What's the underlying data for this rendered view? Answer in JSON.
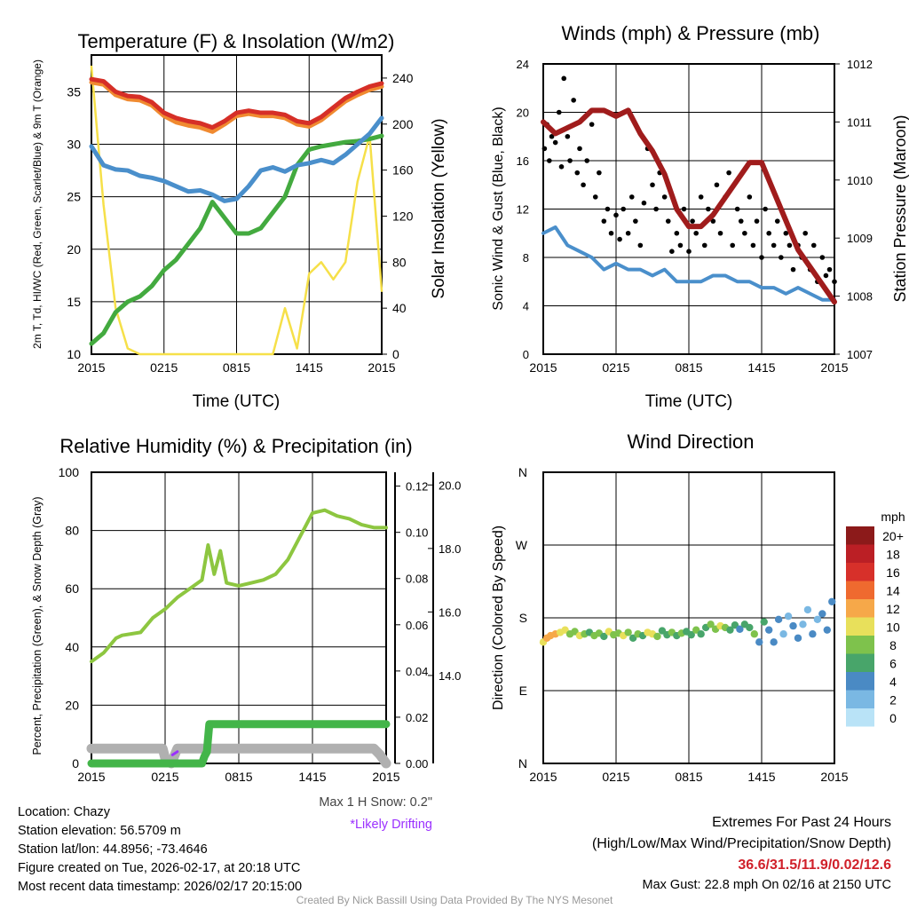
{
  "chart_data": [
    {
      "type": "line",
      "title": "Temperature (F) & Insolation (W/m2)",
      "xlabel": "Time (UTC)",
      "ylabel": "2m T, Td, HI/WC (Red, Green, Scarlet/Blue) & 9m T (Orange)",
      "y2label": "Solar Insolation (Yellow)",
      "xticks": [
        "2015",
        "0215",
        "0815",
        "1415",
        "2015"
      ],
      "ylim": [
        10,
        38.5
      ],
      "yticks": [
        10,
        15,
        20,
        25,
        30,
        35
      ],
      "y2lim": [
        0,
        260
      ],
      "y2ticks": [
        0,
        40,
        80,
        120,
        160,
        200,
        240
      ],
      "hours": [
        0,
        1,
        2,
        3,
        4,
        5,
        6,
        7,
        8,
        9,
        10,
        11,
        12,
        13,
        14,
        15,
        16,
        17,
        18,
        19,
        20,
        21,
        22,
        23,
        24
      ],
      "series": [
        {
          "name": "2m T",
          "color": "#d62f27",
          "axis": "left",
          "values": [
            36.2,
            36,
            35,
            34.6,
            34.5,
            34,
            33,
            32.5,
            32.2,
            32,
            31.6,
            32.2,
            33,
            33.2,
            33,
            33,
            32.8,
            32.2,
            32,
            32.6,
            33.5,
            34.4,
            35,
            35.5,
            35.8
          ]
        },
        {
          "name": "9m T",
          "color": "#f08a30",
          "axis": "left",
          "values": [
            35.9,
            35.7,
            34.7,
            34.3,
            34.2,
            33.7,
            32.7,
            32.1,
            31.8,
            31.6,
            31.2,
            31.9,
            32.7,
            32.9,
            32.7,
            32.7,
            32.5,
            31.9,
            31.7,
            32.3,
            33.2,
            34.1,
            34.7,
            35.2,
            35.5
          ]
        },
        {
          "name": "Wind Chill",
          "color": "#4a8fcb",
          "axis": "left",
          "values": [
            29.8,
            28,
            27.6,
            27.5,
            27,
            26.8,
            26.5,
            26,
            25.5,
            25.6,
            25.2,
            24.6,
            24.8,
            26,
            27.5,
            27.8,
            27.4,
            28,
            28.2,
            28.5,
            28.2,
            29,
            30,
            31,
            32.5
          ]
        },
        {
          "name": "Dewpoint",
          "color": "#43aa3f",
          "axis": "left",
          "values": [
            11,
            12,
            14,
            15,
            15.5,
            16.5,
            18,
            19,
            20.5,
            22,
            24.5,
            23,
            21.5,
            21.5,
            22,
            23.5,
            25,
            28,
            29.5,
            29.8,
            30,
            30.2,
            30.3,
            30.5,
            30.8
          ]
        },
        {
          "name": "Solar Insolation",
          "color": "#f6e049",
          "axis": "right",
          "values": [
            250,
            130,
            40,
            5,
            0,
            0,
            0,
            0,
            0,
            0,
            0,
            0,
            0,
            0,
            0,
            0,
            40,
            5,
            70,
            80,
            65,
            80,
            150,
            190,
            55
          ]
        }
      ]
    },
    {
      "type": "line",
      "title": "Winds (mph) & Pressure (mb)",
      "xlabel": "Time (UTC)",
      "ylabel": "Sonic Wind & Gust (Blue, Black)",
      "y2label": "Station Pressure (Maroon)",
      "xticks": [
        "2015",
        "0215",
        "0815",
        "1415",
        "2015"
      ],
      "ylim": [
        0,
        24
      ],
      "yticks": [
        0,
        4,
        8,
        12,
        16,
        20,
        24
      ],
      "y2lim": [
        1007,
        1012
      ],
      "y2ticks": [
        1007,
        1008,
        1009,
        1010,
        1011,
        1012
      ],
      "hours": [
        0,
        1,
        2,
        3,
        4,
        5,
        6,
        7,
        8,
        9,
        10,
        11,
        12,
        13,
        14,
        15,
        16,
        17,
        18,
        19,
        20,
        21,
        22,
        23,
        24
      ],
      "series": [
        {
          "name": "Sonic Wind",
          "color": "#4a8fcb",
          "axis": "left",
          "values": [
            10,
            10.5,
            9,
            8.5,
            8,
            7,
            7.5,
            7,
            7,
            6.5,
            7,
            6,
            6,
            6,
            6.5,
            6.5,
            6,
            6,
            5.5,
            5.5,
            5,
            5.5,
            5,
            4.5,
            4.5
          ]
        },
        {
          "name": "Station Pressure",
          "color": "#a01c1c",
          "axis": "right",
          "values": [
            1011,
            1010.8,
            1010.9,
            1011,
            1011.2,
            1011.2,
            1011.1,
            1011.2,
            1010.8,
            1010.5,
            1010.1,
            1009.5,
            1009.2,
            1009.2,
            1009.4,
            1009.7,
            1010,
            1010.3,
            1010.3,
            1009.8,
            1009.3,
            1008.8,
            1008.5,
            1008.2,
            1007.9
          ]
        }
      ],
      "gust_points": [
        [
          0.1,
          17
        ],
        [
          0.3,
          19
        ],
        [
          0.5,
          16
        ],
        [
          0.7,
          18
        ],
        [
          1,
          17.5
        ],
        [
          1.3,
          20
        ],
        [
          1.5,
          15.5
        ],
        [
          1.7,
          22.8
        ],
        [
          2,
          18
        ],
        [
          2.2,
          16
        ],
        [
          2.5,
          21
        ],
        [
          2.8,
          15
        ],
        [
          3,
          17
        ],
        [
          3.3,
          14
        ],
        [
          3.6,
          16
        ],
        [
          4,
          19
        ],
        [
          4.3,
          13
        ],
        [
          4.6,
          15
        ],
        [
          5,
          11
        ],
        [
          5.3,
          12
        ],
        [
          5.6,
          10
        ],
        [
          6,
          11.5
        ],
        [
          6.3,
          9.5
        ],
        [
          6.6,
          12
        ],
        [
          7,
          10
        ],
        [
          7.3,
          13
        ],
        [
          7.6,
          11
        ],
        [
          8,
          9
        ],
        [
          8.3,
          12.5
        ],
        [
          8.6,
          17
        ],
        [
          9,
          14
        ],
        [
          9.3,
          12
        ],
        [
          9.6,
          15
        ],
        [
          10,
          13
        ],
        [
          10.3,
          11
        ],
        [
          10.6,
          8.5
        ],
        [
          11,
          10
        ],
        [
          11.3,
          9
        ],
        [
          11.6,
          12
        ],
        [
          12,
          8.5
        ],
        [
          12.3,
          11
        ],
        [
          12.6,
          10
        ],
        [
          13,
          13
        ],
        [
          13.3,
          9
        ],
        [
          13.6,
          12
        ],
        [
          14,
          11
        ],
        [
          14.3,
          14
        ],
        [
          14.6,
          10
        ],
        [
          15,
          13
        ],
        [
          15.3,
          15
        ],
        [
          15.6,
          9
        ],
        [
          16,
          12
        ],
        [
          16.3,
          11
        ],
        [
          16.6,
          10
        ],
        [
          17,
          13
        ],
        [
          17.3,
          9
        ],
        [
          17.6,
          11
        ],
        [
          18,
          8
        ],
        [
          18.3,
          12
        ],
        [
          18.6,
          10
        ],
        [
          19,
          9
        ],
        [
          19.3,
          11
        ],
        [
          19.6,
          8
        ],
        [
          20,
          10
        ],
        [
          20.3,
          9
        ],
        [
          20.6,
          7
        ],
        [
          21,
          9
        ],
        [
          21.3,
          8
        ],
        [
          21.6,
          10
        ],
        [
          22,
          7
        ],
        [
          22.3,
          9
        ],
        [
          22.6,
          6
        ],
        [
          23,
          8
        ],
        [
          23.3,
          6.5
        ],
        [
          23.6,
          7
        ],
        [
          24,
          6
        ]
      ]
    },
    {
      "type": "line",
      "title": "Relative Humidity (%) & Precipitation (in)",
      "ylabel": "Percent, Precipitation (Green), & Snow Depth (Gray)",
      "xticks": [
        "2015",
        "0215",
        "0815",
        "1415",
        "2015"
      ],
      "ylim": [
        0,
        100
      ],
      "yticks": [
        0,
        20,
        40,
        60,
        80,
        100
      ],
      "y2lim": [
        0,
        0.126
      ],
      "y2ticks": [
        "0.00",
        "0.02",
        "0.04",
        "0.06",
        "0.08",
        "0.10",
        "0.12"
      ],
      "y3lim": [
        11.23,
        20.4
      ],
      "y3ticks": [
        "14.0",
        "16.0",
        "18.0",
        "20.0"
      ],
      "hours": [
        0,
        1,
        2,
        2.5,
        4,
        5,
        6,
        7,
        8,
        9,
        9.5,
        10,
        10.5,
        11,
        12,
        13,
        14,
        15,
        16,
        17,
        18,
        19,
        20,
        21,
        22,
        23,
        24
      ],
      "series": [
        {
          "name": "Relative Humidity",
          "color": "#8dc640",
          "axis": "left",
          "values": [
            35,
            38,
            43,
            44,
            45,
            50,
            53,
            57,
            60,
            63,
            75,
            65,
            73,
            62,
            61,
            62,
            63,
            65,
            70,
            78,
            86,
            87,
            85,
            84,
            82,
            81,
            81
          ]
        }
      ],
      "precip": {
        "color": "#43b549",
        "hours": [
          0,
          9.0,
          9.2,
          9.4,
          9.6,
          24
        ],
        "values": [
          0,
          0,
          0.003,
          0.005,
          0.017,
          0.017
        ]
      },
      "snow": {
        "color": "#b0b0b0",
        "hours": [
          0,
          5.8,
          6,
          6.5,
          7,
          7.5,
          23,
          23.5,
          24
        ],
        "values": [
          11.7,
          11.7,
          11.4,
          11.23,
          11.7,
          11.7,
          11.7,
          11.5,
          11.23
        ]
      },
      "drifting": {
        "color": "#9b30ff",
        "hours": [
          6.6,
          7.0
        ],
        "values": [
          11.5,
          11.6
        ]
      }
    },
    {
      "type": "scatter",
      "title": "Wind Direction",
      "ylabel": "Direction (Colored By Speed)",
      "xticks": [
        "2015",
        "0215",
        "0815",
        "1415",
        "2015"
      ],
      "yticks": [
        "N",
        "E",
        "S",
        "W",
        "N"
      ],
      "ylim": [
        0,
        360
      ],
      "legend": {
        "title": "mph",
        "labels": [
          "20+",
          "18",
          "16",
          "14",
          "12",
          "10",
          "8",
          "6",
          "4",
          "2",
          "0"
        ],
        "colors": [
          "#8c1a1a",
          "#bb1f25",
          "#d7302a",
          "#ef6a2f",
          "#f6a849",
          "#e8e05b",
          "#7ec24c",
          "#48a56a",
          "#4a8ac4",
          "#7ab8e3",
          "#b9e3f7"
        ]
      },
      "points": [
        [
          0,
          150,
          11
        ],
        [
          0.3,
          155,
          12
        ],
        [
          0.6,
          158,
          13
        ],
        [
          1,
          160,
          12
        ],
        [
          1.4,
          162,
          10
        ],
        [
          1.8,
          165,
          11
        ],
        [
          2.2,
          160,
          9
        ],
        [
          2.6,
          163,
          8
        ],
        [
          3,
          158,
          10
        ],
        [
          3.4,
          160,
          8
        ],
        [
          3.8,
          162,
          7
        ],
        [
          4.2,
          158,
          9
        ],
        [
          4.6,
          161,
          8
        ],
        [
          5,
          157,
          7
        ],
        [
          5.4,
          163,
          11
        ],
        [
          5.8,
          159,
          8
        ],
        [
          6.2,
          161,
          9
        ],
        [
          6.6,
          158,
          10
        ],
        [
          7,
          162,
          8
        ],
        [
          7.4,
          155,
          7
        ],
        [
          7.8,
          160,
          9
        ],
        [
          8.2,
          158,
          6
        ],
        [
          8.6,
          162,
          10
        ],
        [
          9,
          160,
          11
        ],
        [
          9.4,
          157,
          8
        ],
        [
          9.8,
          164,
          7
        ],
        [
          10.2,
          159,
          6
        ],
        [
          10.6,
          162,
          8
        ],
        [
          11,
          158,
          7
        ],
        [
          11.4,
          161,
          8
        ],
        [
          11.8,
          163,
          6
        ],
        [
          12.2,
          159,
          7
        ],
        [
          12.6,
          165,
          8
        ],
        [
          13,
          160,
          6
        ],
        [
          13.4,
          168,
          7
        ],
        [
          13.8,
          172,
          8
        ],
        [
          14.2,
          166,
          9
        ],
        [
          14.6,
          170,
          10
        ],
        [
          15,
          168,
          8
        ],
        [
          15.4,
          165,
          7
        ],
        [
          15.8,
          171,
          6
        ],
        [
          16.2,
          166,
          5
        ],
        [
          16.6,
          172,
          7
        ],
        [
          17,
          168,
          6
        ],
        [
          17.4,
          160,
          8
        ],
        [
          17.8,
          150,
          5
        ],
        [
          18.2,
          175,
          6
        ],
        [
          18.6,
          165,
          4
        ],
        [
          19,
          150,
          5
        ],
        [
          19.4,
          178,
          4
        ],
        [
          19.8,
          160,
          3
        ],
        [
          20.2,
          182,
          3
        ],
        [
          20.6,
          170,
          5
        ],
        [
          21,
          155,
          4
        ],
        [
          21.4,
          172,
          3
        ],
        [
          21.8,
          190,
          2
        ],
        [
          22.2,
          160,
          4
        ],
        [
          22.6,
          178,
          3
        ],
        [
          23,
          185,
          4
        ],
        [
          23.4,
          165,
          5
        ],
        [
          23.8,
          200,
          4
        ]
      ]
    }
  ],
  "footer_left": [
    "Location: Chazy",
    "Station elevation: 56.5709 m",
    "Station lat/lon: 44.8956; -73.4646",
    "Figure created on Tue, 2026-02-17, at 20:18 UTC",
    "Most recent data timestamp: 2026/02/17 20:15:00"
  ],
  "snow_note": "Max 1 H Snow: 0.2\"",
  "drift_note": "*Likely Drifting",
  "extremes_title": "Extremes For Past 24 Hours",
  "extremes_sub": "(High/Low/Max Wind/Precipitation/Snow Depth)",
  "extremes_values": "36.6/31.5/11.9/0.02/12.6",
  "max_gust": "Max Gust: 22.8 mph On 02/16 at 2150 UTC",
  "credit": "Created By Nick Bassill Using Data Provided By The NYS Mesonet"
}
